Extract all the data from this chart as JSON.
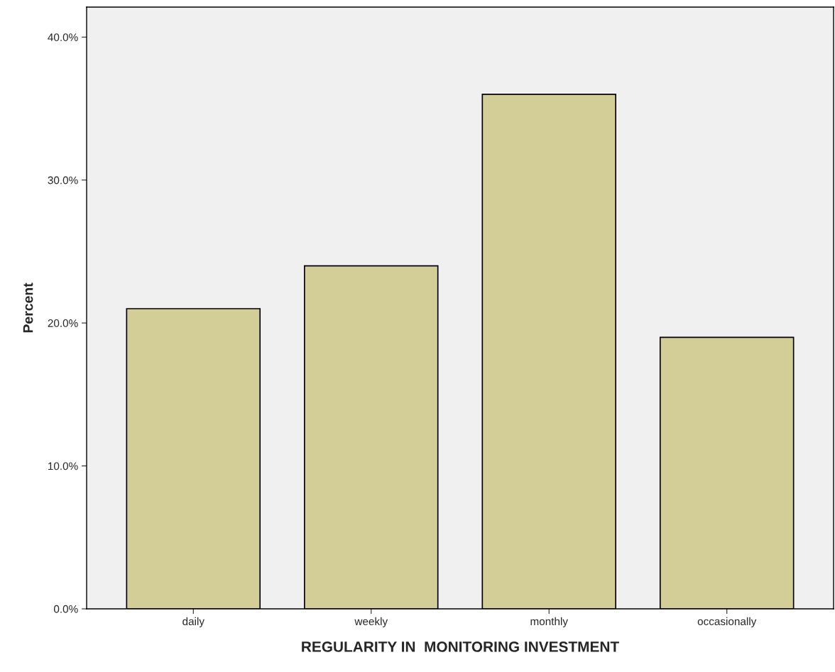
{
  "chart_data": {
    "type": "bar",
    "xlabel": "REGULARITY IN  MONITORING INVESTMENT",
    "ylabel": "Percent",
    "categories": [
      "daily",
      "weekly",
      "monthly",
      "occasionally"
    ],
    "values": [
      21,
      24,
      36,
      19
    ],
    "color": "#d3cd98",
    "ylim": [
      0,
      42.1
    ],
    "yticks": [
      {
        "value": 0,
        "label": "0.0%"
      },
      {
        "value": 10,
        "label": "10.0%"
      },
      {
        "value": 20,
        "label": "20.0%"
      },
      {
        "value": 30,
        "label": "30.0%"
      },
      {
        "value": 40,
        "label": "40.0%"
      }
    ],
    "grid": false
  }
}
